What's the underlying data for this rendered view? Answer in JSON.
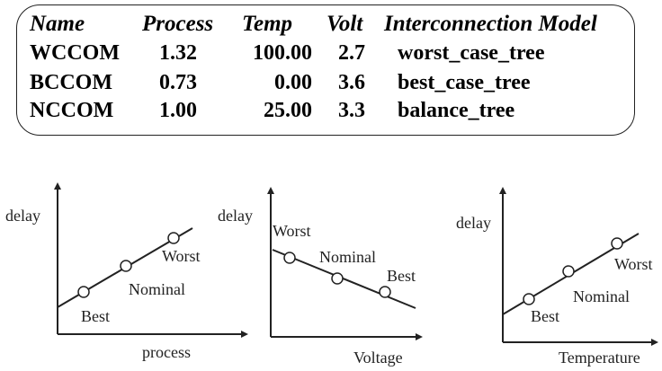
{
  "table": {
    "headers": {
      "name": "Name",
      "process": "Process",
      "temp": "Temp",
      "volt": "Volt",
      "interconnect": "Interconnection Model"
    },
    "rows": [
      {
        "name": "WCCOM",
        "process": "1.32",
        "temp": "100.00",
        "volt": "2.7",
        "interconnect": "worst_case_tree"
      },
      {
        "name": "BCCOM",
        "process": "0.73",
        "temp": "0.00",
        "volt": "3.6",
        "interconnect": "best_case_tree"
      },
      {
        "name": "NCCOM",
        "process": "1.00",
        "temp": "25.00",
        "volt": "3.3",
        "interconnect": "balance_tree"
      }
    ]
  },
  "plots": [
    {
      "y_label": "delay",
      "x_label": "process",
      "trend": "increasing",
      "points": [
        {
          "corner": "Best",
          "label": "Best"
        },
        {
          "corner": "Nominal",
          "label": "Nominal"
        },
        {
          "corner": "Worst",
          "label": "Worst"
        }
      ]
    },
    {
      "y_label": "delay",
      "x_label": "Voltage",
      "trend": "decreasing",
      "points": [
        {
          "corner": "Worst",
          "label": "Worst"
        },
        {
          "corner": "Nominal",
          "label": "Nominal"
        },
        {
          "corner": "Best",
          "label": "Best"
        }
      ]
    },
    {
      "y_label": "delay",
      "x_label": "Temperature",
      "trend": "increasing",
      "points": [
        {
          "corner": "Best",
          "label": "Best"
        },
        {
          "corner": "Nominal",
          "label": "Nominal"
        },
        {
          "corner": "Worst",
          "label": "Worst"
        }
      ]
    }
  ],
  "colors": {
    "line": "#222222",
    "marker_fill": "#ffffff",
    "border": "#222222"
  }
}
